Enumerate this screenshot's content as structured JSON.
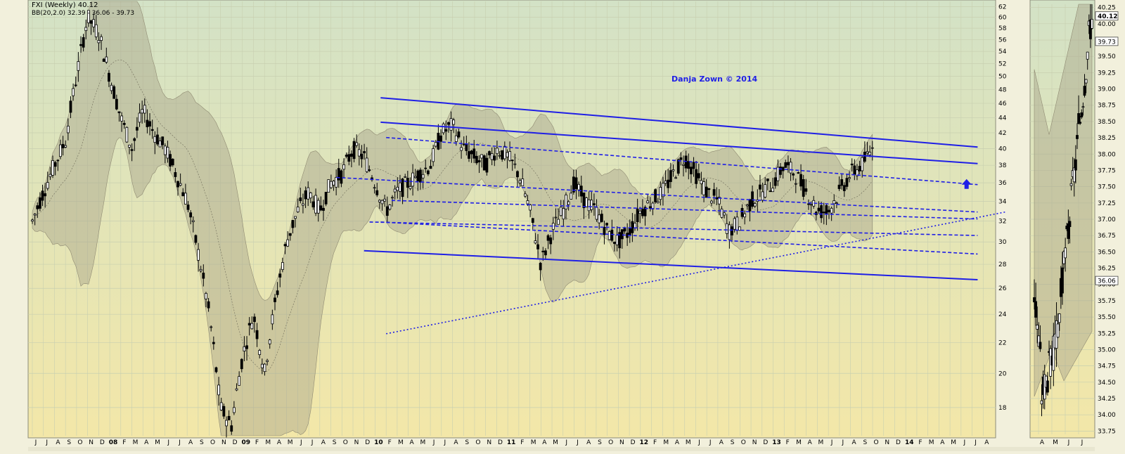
{
  "chart_data": {
    "type": "candlestick",
    "header": {
      "title": "FXI (Weekly) 40.12",
      "bb_line": "BB(20,2.0) 32.39 - 36.06 - 39.73"
    },
    "watermark": "Danja Zown © 2014",
    "y_axis": {
      "scale": "log",
      "ticks": [
        18,
        20,
        22,
        24,
        26,
        28,
        30,
        32,
        34,
        36,
        38,
        40,
        42,
        44,
        46,
        48,
        50,
        52,
        54,
        56,
        58,
        60,
        62
      ],
      "range": [
        16.5,
        63
      ]
    },
    "x_axis": {
      "labels": [
        "J",
        "J",
        "A",
        "S",
        "O",
        "N",
        "D",
        "08",
        "F",
        "M",
        "A",
        "M",
        "J",
        "J",
        "A",
        "S",
        "O",
        "N",
        "D",
        "09",
        "F",
        "M",
        "A",
        "M",
        "J",
        "J",
        "A",
        "S",
        "O",
        "N",
        "D",
        "10",
        "F",
        "M",
        "A",
        "M",
        "J",
        "J",
        "A",
        "S",
        "O",
        "N",
        "D",
        "11",
        "F",
        "M",
        "A",
        "M",
        "J",
        "J",
        "A",
        "S",
        "O",
        "N",
        "D",
        "12",
        "F",
        "M",
        "A",
        "M",
        "J",
        "J",
        "A",
        "S",
        "O",
        "N",
        "D",
        "13",
        "F",
        "M",
        "A",
        "M",
        "J",
        "J",
        "A",
        "S",
        "O",
        "N",
        "D",
        "14",
        "F",
        "M",
        "A",
        "M",
        "J",
        "J",
        "A"
      ],
      "start_month": "2007-06",
      "end_month": "2014-08"
    },
    "price_path": [
      [
        0,
        32
      ],
      [
        2,
        38
      ],
      [
        3,
        41
      ],
      [
        4,
        50
      ],
      [
        5,
        60
      ],
      [
        6,
        57
      ],
      [
        7,
        50
      ],
      [
        8,
        44
      ],
      [
        9,
        40
      ],
      [
        10,
        45
      ],
      [
        11,
        42
      ],
      [
        12,
        40
      ],
      [
        13,
        37
      ],
      [
        14,
        34
      ],
      [
        15,
        29
      ],
      [
        16,
        24
      ],
      [
        17,
        18
      ],
      [
        18,
        17
      ],
      [
        19,
        21
      ],
      [
        20,
        24
      ],
      [
        21,
        20
      ],
      [
        22,
        25
      ],
      [
        23,
        30
      ],
      [
        24,
        33
      ],
      [
        25,
        35
      ],
      [
        26,
        33
      ],
      [
        27,
        36
      ],
      [
        28,
        37
      ],
      [
        29,
        40
      ],
      [
        30,
        39
      ],
      [
        31,
        36
      ],
      [
        32,
        33
      ],
      [
        33,
        35
      ],
      [
        34,
        36
      ],
      [
        35,
        37
      ],
      [
        36,
        38
      ],
      [
        37,
        42
      ],
      [
        38,
        43
      ],
      [
        39,
        40
      ],
      [
        40,
        39
      ],
      [
        41,
        38
      ],
      [
        42,
        40
      ],
      [
        43,
        39
      ],
      [
        44,
        37
      ],
      [
        45,
        33
      ],
      [
        46,
        28
      ],
      [
        47,
        31
      ],
      [
        48,
        33
      ],
      [
        49,
        36
      ],
      [
        50,
        34
      ],
      [
        51,
        33
      ],
      [
        52,
        31
      ],
      [
        53,
        30
      ],
      [
        54,
        31
      ],
      [
        55,
        33
      ],
      [
        56,
        34
      ],
      [
        57,
        35
      ],
      [
        58,
        37
      ],
      [
        59,
        39
      ],
      [
        60,
        37
      ],
      [
        61,
        35
      ],
      [
        62,
        34
      ],
      [
        63,
        31
      ],
      [
        64,
        32
      ],
      [
        65,
        34
      ],
      [
        66,
        35
      ],
      [
        67,
        36
      ],
      [
        68,
        38
      ],
      [
        69,
        37
      ],
      [
        70,
        35
      ],
      [
        71,
        33
      ],
      [
        72,
        33
      ],
      [
        73,
        35
      ],
      [
        74,
        37
      ],
      [
        75,
        38
      ],
      [
        76,
        40
      ]
    ],
    "last_price": 40.12,
    "bollinger": {
      "period": 20,
      "stddev": 2.0,
      "lower": 32.39,
      "middle": 36.06,
      "upper": 39.73
    },
    "annotations": [
      {
        "type": "trendline",
        "style": "solid",
        "from": [
          31.5,
          46.8
        ],
        "to": [
          85.5,
          40.2
        ]
      },
      {
        "type": "trendline",
        "style": "solid",
        "from": [
          31.5,
          43.4
        ],
        "to": [
          85.5,
          38.2
        ]
      },
      {
        "type": "trendline",
        "style": "dashed",
        "from": [
          32,
          41.4
        ],
        "to": [
          85.5,
          35.8
        ]
      },
      {
        "type": "trendline",
        "style": "dashed",
        "from": [
          27.5,
          36.6
        ],
        "to": [
          85.5,
          32.9
        ]
      },
      {
        "type": "trendline",
        "style": "dashed",
        "from": [
          32.5,
          34.1
        ],
        "to": [
          85.5,
          32.2
        ]
      },
      {
        "type": "trendline",
        "style": "dashed",
        "from": [
          30.5,
          31.9
        ],
        "to": [
          85.5,
          30.6
        ]
      },
      {
        "type": "trendline",
        "style": "dashed",
        "from": [
          31.5,
          31.9
        ],
        "to": [
          85.5,
          28.9
        ]
      },
      {
        "type": "trendline",
        "style": "solid",
        "from": [
          30,
          29.2
        ],
        "to": [
          85.5,
          26.7
        ]
      },
      {
        "type": "trendline",
        "style": "dotted",
        "from": [
          32,
          22.6
        ],
        "to": [
          88,
          32.9
        ]
      },
      {
        "type": "arrow",
        "direction": "up",
        "at": [
          84.5,
          35.8
        ]
      }
    ],
    "inset": {
      "y_axis": {
        "ticks": [
          33.75,
          34.0,
          34.25,
          34.5,
          34.75,
          35.0,
          35.25,
          35.5,
          35.75,
          36.0,
          36.25,
          36.5,
          36.75,
          37.0,
          37.25,
          37.5,
          37.75,
          38.0,
          38.25,
          38.5,
          38.75,
          39.0,
          39.25,
          39.5,
          39.75,
          40.0,
          40.25
        ],
        "range": [
          33.7,
          40.3
        ]
      },
      "x_axis": {
        "labels": [
          "A",
          "M",
          "J",
          "J"
        ]
      },
      "markers": [
        "40.12",
        "39.73",
        "36.06"
      ]
    },
    "colors": {
      "candle": "#000000",
      "trendline": "#1f1fe6",
      "band": "#a7a28a",
      "grid": "#c8cfb0",
      "bg_top": "#d3e2c6",
      "bg_bottom": "#f3e7a8",
      "watermark": "#1f1fe6"
    }
  }
}
